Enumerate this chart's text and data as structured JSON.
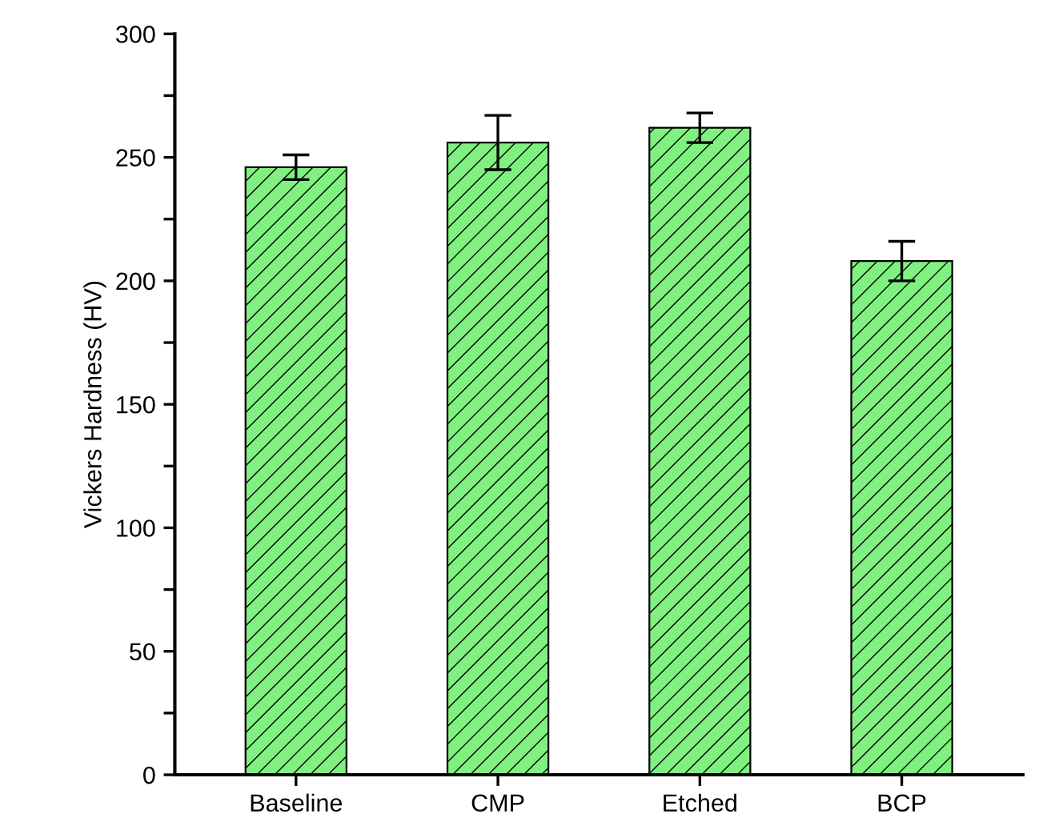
{
  "chart_data": {
    "type": "bar",
    "ylabel": "Vickers Hardness (HV)",
    "categories": [
      "Baseline",
      "CMP",
      "Etched",
      "BCP"
    ],
    "values": [
      246,
      256,
      262,
      208
    ],
    "errors": [
      5,
      11,
      6,
      8
    ],
    "color": "#80f080",
    "ylim": [
      0,
      300
    ],
    "yticks": [
      0,
      {
        "value": 25,
        "label": null
      },
      50,
      {
        "value": 75,
        "label": null
      },
      100,
      {
        "value": 125,
        "label": null
      },
      150,
      {
        "value": 175,
        "label": null
      },
      200,
      {
        "value": 225,
        "label": null
      },
      250,
      {
        "value": 275,
        "label": null
      },
      300
    ],
    "grid": false
  }
}
